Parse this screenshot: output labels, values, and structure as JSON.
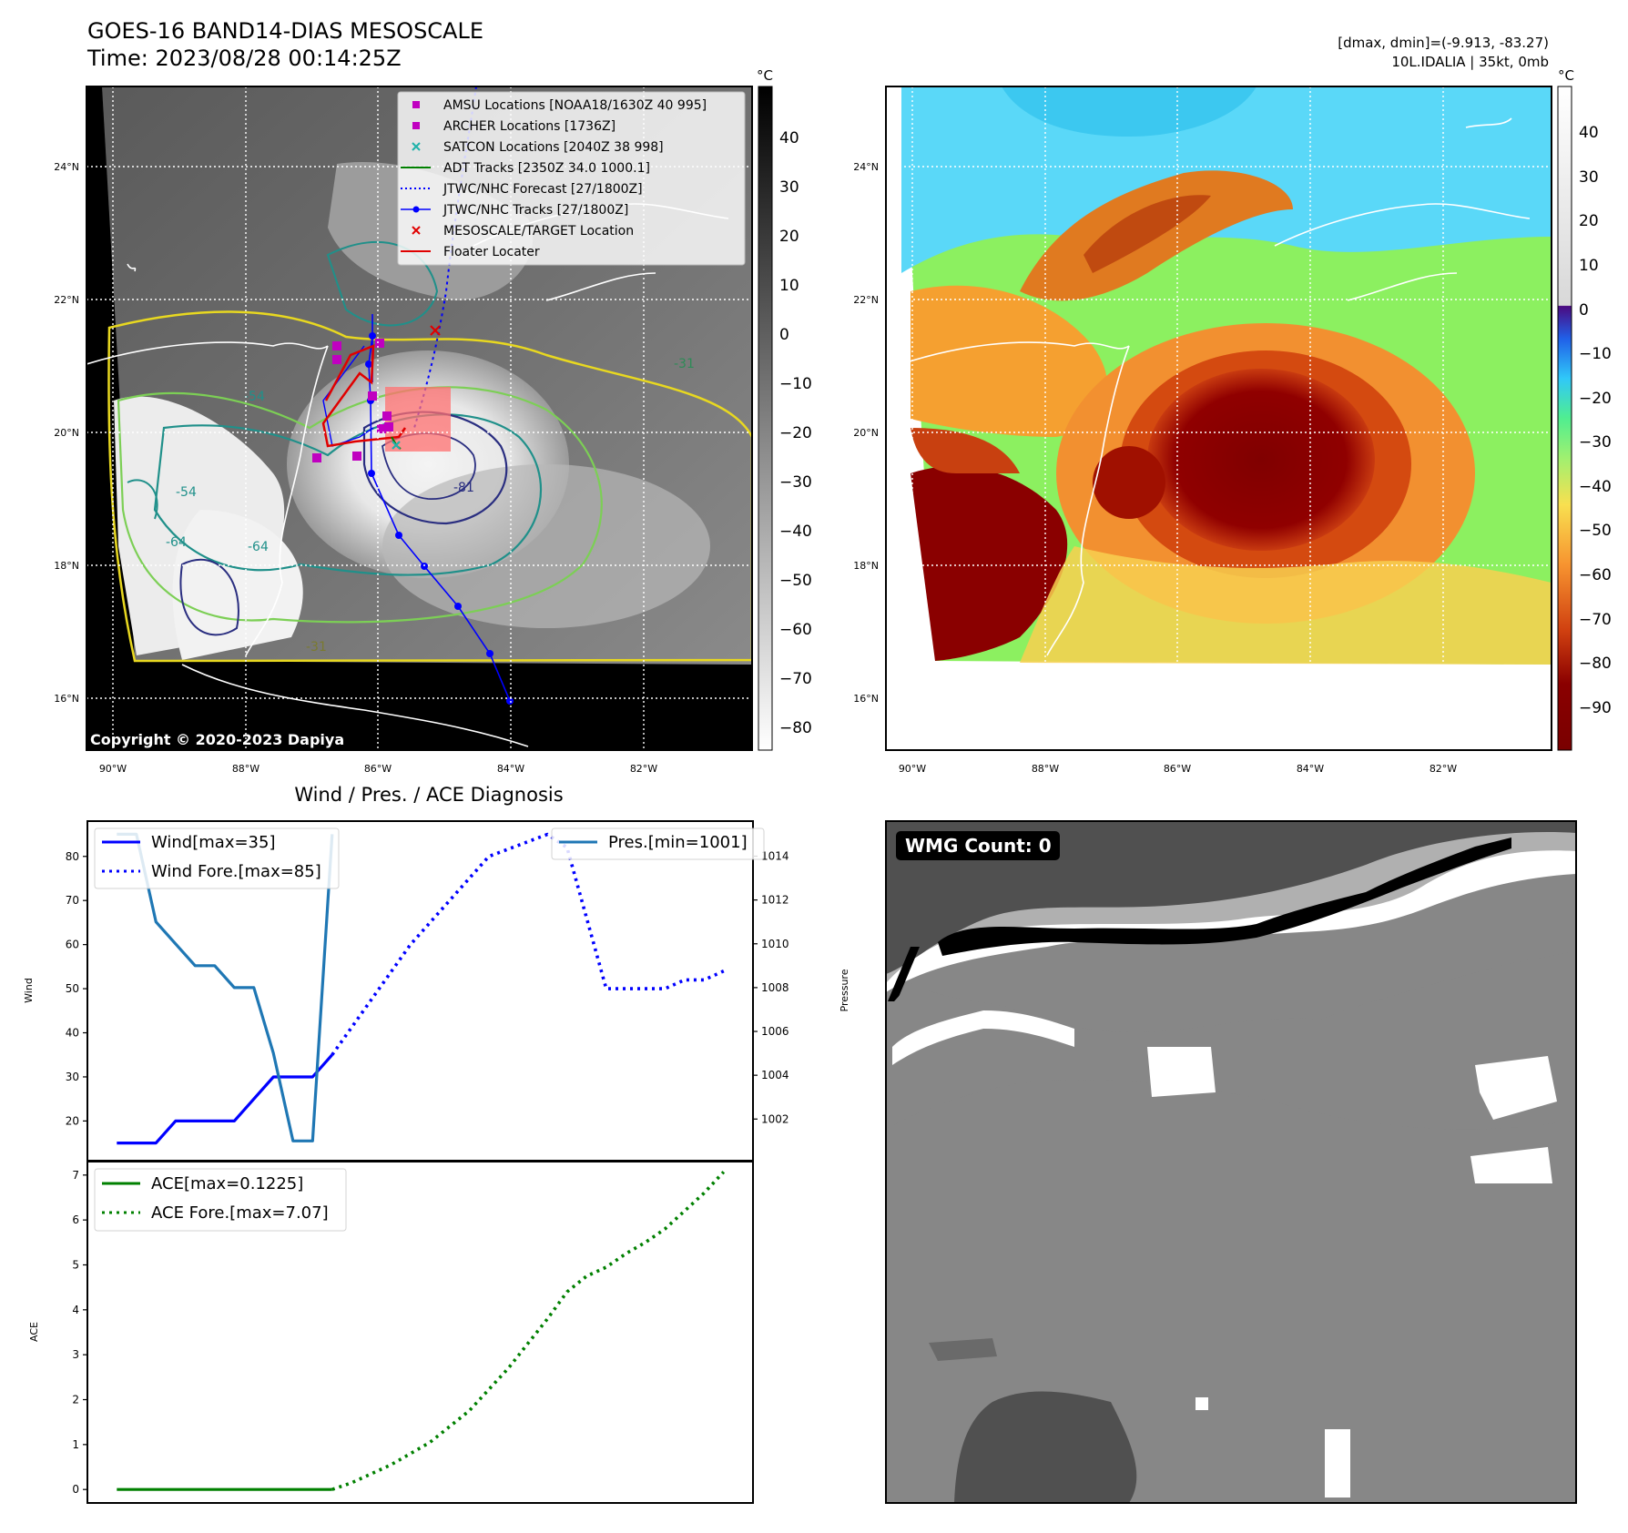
{
  "header": {
    "title_line1": "GOES-16 BAND14-DIAS MESOSCALE",
    "title_line2": "Time: 2023/08/28 00:14:25Z",
    "right_line1": "[dmax, dmin]=(-9.913, -83.27)",
    "right_line2": "10L.IDALIA | 35kt, 0mb"
  },
  "map_panels": {
    "lat_ticks": [
      "24°N",
      "22°N",
      "20°N",
      "18°N",
      "16°N"
    ],
    "lon_ticks": [
      "90°W",
      "88°W",
      "86°W",
      "84°W",
      "82°W"
    ],
    "lon_range": [
      -90.4,
      -80.4
    ],
    "lat_range": [
      15.2,
      25.2
    ],
    "copyright": "Copyright © 2020-2023 Dapiya",
    "colorbar_unit": "°C",
    "gray_colorbar_ticks": [
      "40",
      "30",
      "20",
      "10",
      "0",
      "−10",
      "−20",
      "−30",
      "−40",
      "−50",
      "−60",
      "−70",
      "−80"
    ],
    "color_colorbar_ticks": [
      "40",
      "30",
      "20",
      "10",
      "0",
      "−10",
      "−20",
      "−30",
      "−40",
      "−50",
      "−60",
      "−70",
      "−80",
      "−90"
    ],
    "contour_labels": [
      "-31",
      "-54",
      "-64",
      "-81",
      "-64",
      "-54",
      "-31"
    ],
    "legend": [
      {
        "label": "AMSU Locations [NOAA18/1630Z 40 995]",
        "marker": "square",
        "color": "#c000c0"
      },
      {
        "label": "ARCHER Locations [1736Z]",
        "marker": "square",
        "color": "#c000c0"
      },
      {
        "label": "SATCON Locations [2040Z 38 998]",
        "marker": "x",
        "color": "#20b2aa"
      },
      {
        "label": "ADT Tracks [2350Z 34.0 1000.1]",
        "marker": "line",
        "color": "#008000"
      },
      {
        "label": "JTWC/NHC Forecast [27/1800Z]",
        "marker": "dotted",
        "color": "#0000ff"
      },
      {
        "label": "JTWC/NHC Tracks [27/1800Z]",
        "marker": "line-dot",
        "color": "#0000ff"
      },
      {
        "label": "MESOSCALE/TARGET Location",
        "marker": "x",
        "color": "#ff0000"
      },
      {
        "label": "Floater Locater",
        "marker": "line",
        "color": "#ff0000"
      }
    ]
  },
  "chart_data": [
    {
      "type": "line",
      "title": "Wind / Pres. / ACE Diagnosis",
      "ylabel": "Wind",
      "ylabel_right": "Pressure",
      "ylim": [
        11,
        88
      ],
      "ylim_right": [
        1000.1,
        1015.6
      ],
      "yticks": [
        20,
        30,
        40,
        50,
        60,
        70,
        80
      ],
      "yticks_right": [
        1002,
        1004,
        1006,
        1008,
        1010,
        1012,
        1014
      ],
      "xlim": [
        -0.5,
        33.5
      ],
      "series": [
        {
          "name": "Wind[max=35]",
          "style": "solid",
          "color": "#0000ff",
          "x": [
            1,
            2,
            3,
            4,
            5,
            6,
            7,
            8,
            9,
            10,
            11,
            12
          ],
          "y": [
            15,
            15,
            15,
            20,
            20,
            20,
            20,
            25,
            30,
            30,
            30,
            35
          ]
        },
        {
          "name": "Wind Fore.[max=85]",
          "style": "dotted",
          "color": "#0000ff",
          "x": [
            12,
            16,
            20,
            23,
            24,
            26,
            27,
            28,
            29,
            30,
            31,
            32
          ],
          "y": [
            35,
            60,
            80,
            85,
            82,
            50,
            50,
            50,
            50,
            52,
            52,
            54
          ]
        },
        {
          "name": "Pres.[min=1001]",
          "style": "solid",
          "color": "#1f77b4",
          "axis": "right",
          "x": [
            1,
            2,
            3,
            4,
            5,
            6,
            7,
            8,
            9,
            10,
            11,
            12
          ],
          "y": [
            1015,
            1015,
            1011,
            1010,
            1009,
            1009,
            1008,
            1008,
            1005,
            1001,
            1001,
            1015
          ]
        }
      ]
    },
    {
      "type": "line",
      "ylabel": "ACE",
      "ylim": [
        -0.3,
        7.3
      ],
      "yticks": [
        0,
        1,
        2,
        3,
        4,
        5,
        6,
        7
      ],
      "xlim": [
        -0.5,
        33.5
      ],
      "series": [
        {
          "name": "ACE[max=0.1225]",
          "style": "solid",
          "color": "#008000",
          "x": [
            1,
            12
          ],
          "y": [
            0,
            0
          ]
        },
        {
          "name": "ACE Fore.[max=7.07]",
          "style": "dotted",
          "color": "#008000",
          "x": [
            12,
            13,
            15,
            17,
            19,
            21,
            22,
            23,
            24,
            25,
            26,
            27,
            28,
            29,
            30,
            31,
            32
          ],
          "y": [
            0,
            0.15,
            0.55,
            1.05,
            1.75,
            2.7,
            3.25,
            3.8,
            4.4,
            4.75,
            4.95,
            5.25,
            5.5,
            5.8,
            6.2,
            6.6,
            7.07
          ]
        }
      ]
    }
  ],
  "wmg": {
    "label": "WMG Count: 0"
  }
}
